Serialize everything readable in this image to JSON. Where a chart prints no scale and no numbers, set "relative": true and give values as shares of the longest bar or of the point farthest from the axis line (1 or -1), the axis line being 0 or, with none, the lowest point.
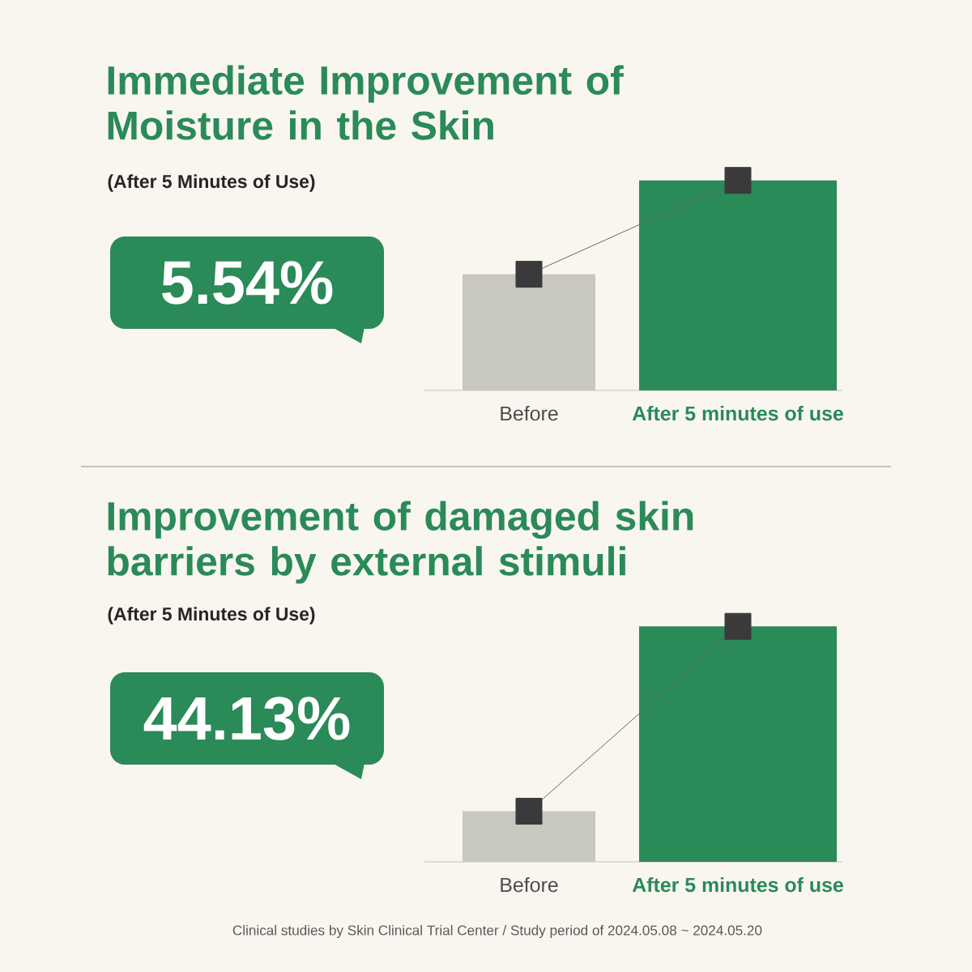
{
  "chart_data": [
    {
      "type": "bar",
      "title": "Immediate Improvement of Moisture in the Skin",
      "subtitle": "(After 5 Minutes of Use)",
      "categories": [
        "Before",
        "After 5 minutes of use"
      ],
      "relative": true,
      "marker": "square",
      "series": [
        {
          "colors": [
            "#c8c7c0",
            "#2a8a58"
          ],
          "values": [
            0.553,
            1
          ]
        },
        {
          "type": "line",
          "color": "#3a3a3a",
          "values": [
            0.553,
            1
          ]
        }
      ],
      "annotations": [
        "5.54%"
      ]
    },
    {
      "type": "bar",
      "title": "Improvement of damaged skin barriers by external stimuli",
      "subtitle": "(After 5 Minutes of Use)",
      "categories": [
        "Before",
        "After 5 minutes of use"
      ],
      "relative": true,
      "marker": "square",
      "series": [
        {
          "colors": [
            "#c8c7c0",
            "#2a8a58"
          ],
          "values": [
            0.215,
            1
          ]
        },
        {
          "type": "line",
          "color": "#3a3a3a",
          "values": [
            0.215,
            1
          ]
        }
      ],
      "annotations": [
        "44.13%",
        "Clinical studies by Skin Clinical Trial Center / Study period of 2024.05.08 ~ 2024.05.20"
      ]
    }
  ]
}
